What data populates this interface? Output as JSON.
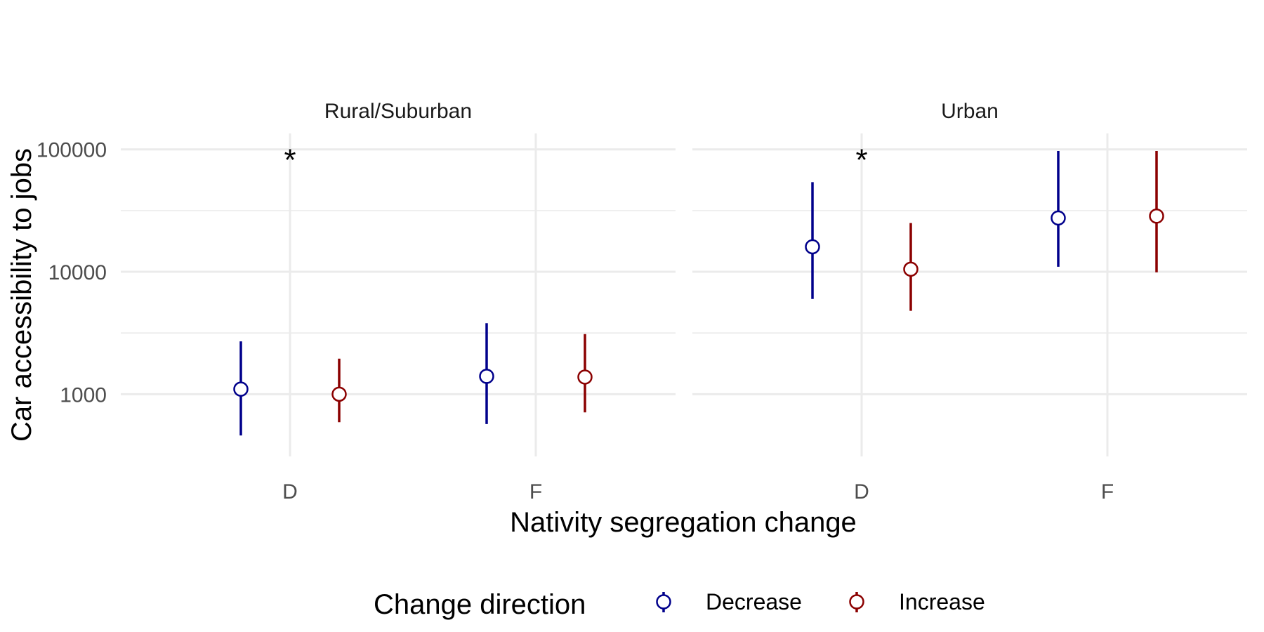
{
  "chart_data": {
    "type": "scatter",
    "subtype": "pointrange",
    "xlabel": "Nativity segregation change",
    "ylabel": "Car accessibility to jobs",
    "y_scale": "log10",
    "ylim": [
      310,
      135000
    ],
    "y_ticks": [
      1000,
      10000,
      100000
    ],
    "y_tick_labels": [
      "1000",
      "10000",
      "100000"
    ],
    "categories": [
      "D",
      "F"
    ],
    "grid": true,
    "legend": {
      "title": "Change direction",
      "position": "bottom",
      "entries": [
        {
          "name": "Decrease",
          "color": "#00008B"
        },
        {
          "name": "Increase",
          "color": "#8B0000"
        }
      ]
    },
    "panels": [
      {
        "label": "Rural/Suburban",
        "annotations": [
          {
            "text": "*",
            "x": "D",
            "y": 100000
          }
        ],
        "series": [
          {
            "name": "Decrease",
            "points": [
              {
                "x": "D",
                "y": 1100,
                "lo": 460,
                "hi": 2700
              },
              {
                "x": "F",
                "y": 1400,
                "lo": 570,
                "hi": 3800
              }
            ]
          },
          {
            "name": "Increase",
            "points": [
              {
                "x": "D",
                "y": 1000,
                "lo": 590,
                "hi": 1950
              },
              {
                "x": "F",
                "y": 1380,
                "lo": 710,
                "hi": 3100
              }
            ]
          }
        ]
      },
      {
        "label": "Urban",
        "annotations": [
          {
            "text": "*",
            "x": "D",
            "y": 100000
          }
        ],
        "series": [
          {
            "name": "Decrease",
            "points": [
              {
                "x": "D",
                "y": 16000,
                "lo": 6000,
                "hi": 54000
              },
              {
                "x": "F",
                "y": 27500,
                "lo": 11000,
                "hi": 97000
              }
            ]
          },
          {
            "name": "Increase",
            "points": [
              {
                "x": "D",
                "y": 10500,
                "lo": 4800,
                "hi": 25000
              },
              {
                "x": "F",
                "y": 28500,
                "lo": 9900,
                "hi": 97000
              }
            ]
          }
        ]
      }
    ]
  }
}
